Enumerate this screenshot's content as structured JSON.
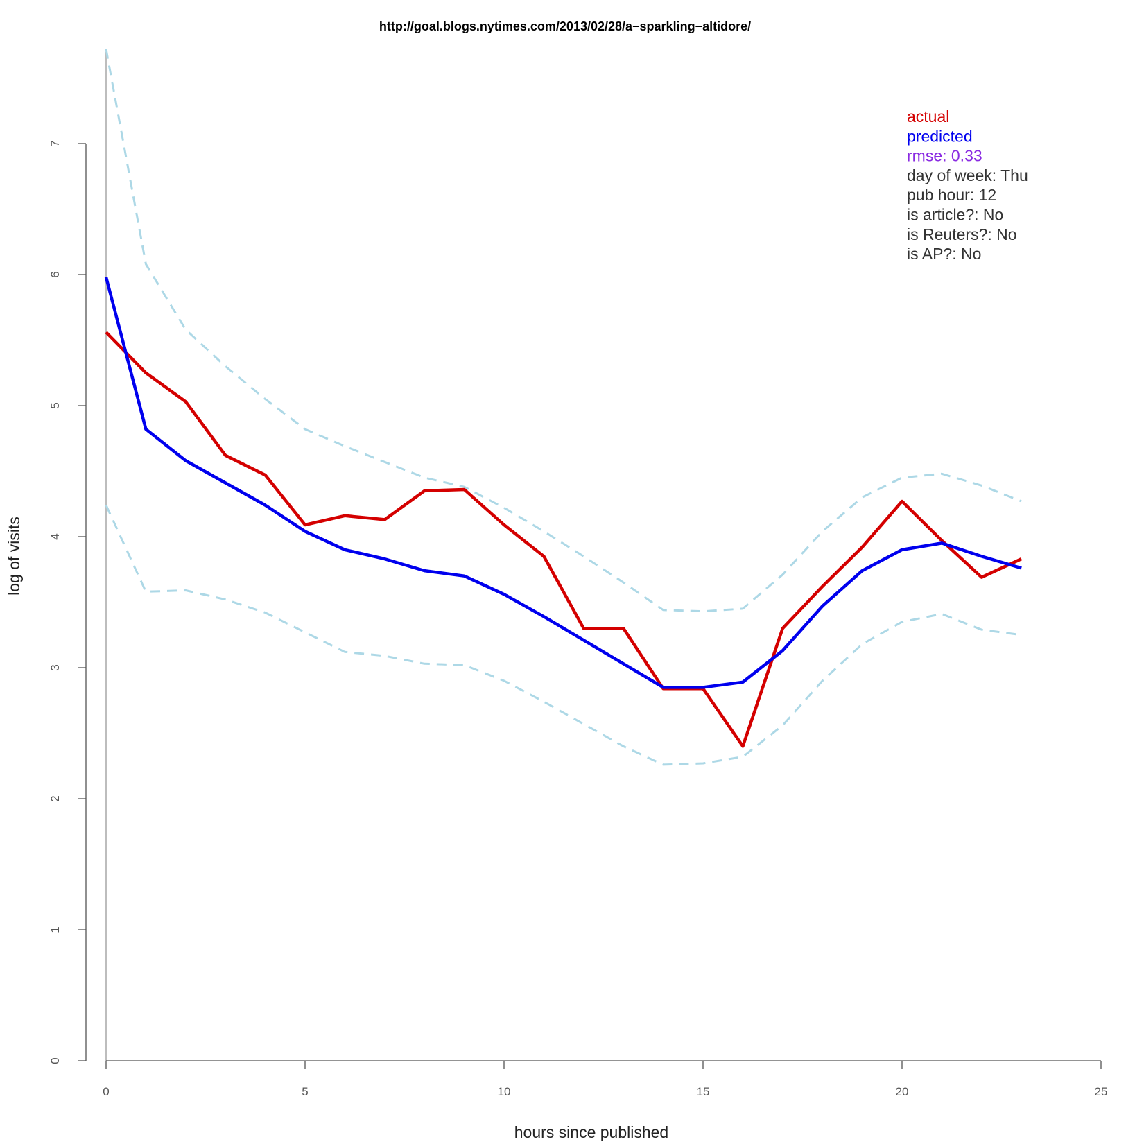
{
  "chart_data": {
    "type": "line",
    "title": "http://goal.blogs.nytimes.com/2013/02/28/a−sparkling−altidore/",
    "xlabel": "hours since published",
    "ylabel": "log of visits",
    "xlim": [
      0,
      25
    ],
    "ylim": [
      0,
      7.7
    ],
    "x_ticks": [
      0,
      5,
      10,
      15,
      20,
      25
    ],
    "y_ticks": [
      0,
      1,
      2,
      3,
      4,
      5,
      6,
      7
    ],
    "grid": false,
    "series": [
      {
        "name": "upper bound",
        "style": "dashed",
        "color": "#add8e6",
        "x": [
          0,
          1,
          2,
          3,
          4,
          5,
          6,
          7,
          8,
          9,
          10,
          11,
          12,
          13,
          14,
          15,
          16,
          17,
          18,
          19,
          20,
          21,
          22,
          23
        ],
        "values": [
          7.72,
          6.08,
          5.58,
          5.3,
          5.05,
          4.82,
          4.69,
          4.57,
          4.45,
          4.38,
          4.22,
          4.04,
          3.85,
          3.65,
          3.44,
          3.43,
          3.45,
          3.71,
          4.04,
          4.3,
          4.45,
          4.48,
          4.39,
          4.27
        ]
      },
      {
        "name": "lower bound",
        "style": "dashed",
        "color": "#add8e6",
        "x": [
          0,
          1,
          2,
          3,
          4,
          5,
          6,
          7,
          8,
          9,
          10,
          11,
          12,
          13,
          14,
          15,
          16,
          17,
          18,
          19,
          20,
          21,
          22,
          23
        ],
        "values": [
          4.24,
          3.58,
          3.59,
          3.52,
          3.42,
          3.27,
          3.12,
          3.09,
          3.03,
          3.02,
          2.9,
          2.74,
          2.57,
          2.4,
          2.26,
          2.27,
          2.32,
          2.56,
          2.9,
          3.18,
          3.35,
          3.41,
          3.29,
          3.25
        ]
      },
      {
        "name": "actual",
        "style": "solid",
        "color": "#d40000",
        "x": [
          0,
          1,
          2,
          3,
          4,
          5,
          6,
          7,
          8,
          9,
          10,
          11,
          12,
          13,
          14,
          15,
          16,
          17,
          18,
          19,
          20,
          21,
          22,
          23
        ],
        "values": [
          5.56,
          5.25,
          5.03,
          4.62,
          4.47,
          4.09,
          4.16,
          4.13,
          4.35,
          4.36,
          4.09,
          3.85,
          3.3,
          3.3,
          2.84,
          2.84,
          2.4,
          3.3,
          3.62,
          3.92,
          4.27,
          3.97,
          3.69,
          3.83
        ]
      },
      {
        "name": "predicted",
        "style": "solid",
        "color": "#0000ee",
        "x": [
          0,
          1,
          2,
          3,
          4,
          5,
          6,
          7,
          8,
          9,
          10,
          11,
          12,
          13,
          14,
          15,
          16,
          17,
          18,
          19,
          20,
          21,
          22,
          23
        ],
        "values": [
          5.98,
          4.82,
          4.58,
          4.41,
          4.24,
          4.04,
          3.9,
          3.83,
          3.74,
          3.7,
          3.56,
          3.39,
          3.21,
          3.03,
          2.85,
          2.85,
          2.89,
          3.13,
          3.47,
          3.74,
          3.9,
          3.95,
          3.85,
          3.76
        ]
      }
    ],
    "legend": {
      "placement": "top-right",
      "entries": [
        {
          "text": "actual",
          "color": "#d40000"
        },
        {
          "text": "predicted",
          "color": "#0000ee"
        },
        {
          "text": "rmse:  0.33",
          "color": "#8a2be2"
        },
        {
          "text": "day of week:  Thu",
          "color": "#333333"
        },
        {
          "text": "pub hour:  12",
          "color": "#333333"
        },
        {
          "text": "is article?:  No",
          "color": "#333333"
        },
        {
          "text": "is Reuters?:  No",
          "color": "#333333"
        },
        {
          "text": "is AP?:  No",
          "color": "#333333"
        }
      ]
    }
  }
}
